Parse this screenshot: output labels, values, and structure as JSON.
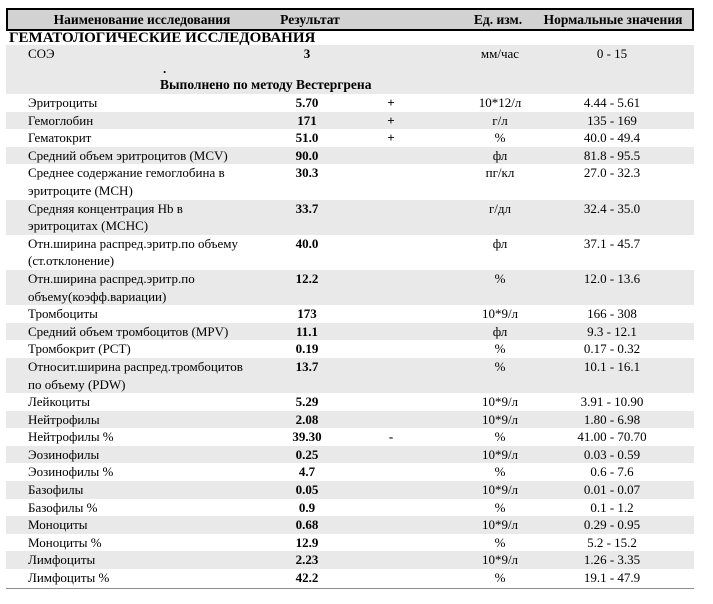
{
  "header": {
    "name": "Наименование исследования",
    "result": "Результат",
    "unit": "Ед. изм.",
    "range": "Нормальные значения"
  },
  "section_title": "ГЕМАТОЛОГИЧЕСКИЕ ИССЛЕДОВАНИЯ",
  "soe": {
    "name": "СОЭ",
    "result": "3",
    "flag": "",
    "unit": "мм/час",
    "range": "0 - 15",
    "dot": ".",
    "method_note": "Выполнено по методу Вестергрена"
  },
  "rows": [
    {
      "name": "Эритроциты",
      "result": "5.70",
      "flag": "+",
      "unit": "10*12/л",
      "range": "4.44 - 5.61",
      "shade": false
    },
    {
      "name": "Гемоглобин",
      "result": "171",
      "flag": "+",
      "unit": "г/л",
      "range": "135 - 169",
      "shade": true
    },
    {
      "name": "Гематокрит",
      "result": "51.0",
      "flag": "+",
      "unit": "%",
      "range": "40.0 - 49.4",
      "shade": false
    },
    {
      "name": "Средний объем эритроцитов (MCV)",
      "result": "90.0",
      "flag": "",
      "unit": "фл",
      "range": "81.8 - 95.5",
      "shade": true
    },
    {
      "name": "Среднее содержание гемоглобина в\nэритроците (MCH)",
      "result": "30.3",
      "flag": "",
      "unit": "пг/кл",
      "range": "27.0 - 32.3",
      "shade": false
    },
    {
      "name": "Средняя концентрация Hb в\nэритроцитах (MCHC)",
      "result": "33.7",
      "flag": "",
      "unit": "г/дл",
      "range": "32.4 - 35.0",
      "shade": true
    },
    {
      "name": "Отн.ширина распред.эритр.по объему\n(ст.отклонение)",
      "result": "40.0",
      "flag": "",
      "unit": "фл",
      "range": "37.1 - 45.7",
      "shade": false
    },
    {
      "name": "Отн.ширина распред.эритр.по\nобъему(коэфф.вариации)",
      "result": "12.2",
      "flag": "",
      "unit": "%",
      "range": "12.0 - 13.6",
      "shade": true
    },
    {
      "name": "Тромбоциты",
      "result": "173",
      "flag": "",
      "unit": "10*9/л",
      "range": "166 - 308",
      "shade": false
    },
    {
      "name": "Средний объем тромбоцитов (MPV)",
      "result": "11.1",
      "flag": "",
      "unit": "фл",
      "range": "9.3 - 12.1",
      "shade": true
    },
    {
      "name": "Тромбокрит (PCT)",
      "result": "0.19",
      "flag": "",
      "unit": "%",
      "range": "0.17 - 0.32",
      "shade": false
    },
    {
      "name": "Относит.ширина распред.тромбоцитов\nпо объему (PDW)",
      "result": "13.7",
      "flag": "",
      "unit": "%",
      "range": "10.1 - 16.1",
      "shade": true
    },
    {
      "name": "Лейкоциты",
      "result": "5.29",
      "flag": "",
      "unit": "10*9/л",
      "range": "3.91 - 10.90",
      "shade": false
    },
    {
      "name": "Нейтрофилы",
      "result": "2.08",
      "flag": "",
      "unit": "10*9/л",
      "range": "1.80 - 6.98",
      "shade": true
    },
    {
      "name": "Нейтрофилы %",
      "result": "39.30",
      "flag": "-",
      "unit": "%",
      "range": "41.00 - 70.70",
      "shade": false
    },
    {
      "name": "Эозинофилы",
      "result": "0.25",
      "flag": "",
      "unit": "10*9/л",
      "range": "0.03 - 0.59",
      "shade": true
    },
    {
      "name": "Эозинофилы %",
      "result": "4.7",
      "flag": "",
      "unit": "%",
      "range": "0.6 - 7.6",
      "shade": false
    },
    {
      "name": "Базофилы",
      "result": "0.05",
      "flag": "",
      "unit": "10*9/л",
      "range": "0.01 - 0.07",
      "shade": true
    },
    {
      "name": "Базофилы %",
      "result": "0.9",
      "flag": "",
      "unit": "%",
      "range": "0.1 - 1.2",
      "shade": false
    },
    {
      "name": "Моноциты",
      "result": "0.68",
      "flag": "",
      "unit": "10*9/л",
      "range": "0.29 - 0.95",
      "shade": true
    },
    {
      "name": "Моноциты %",
      "result": "12.9",
      "flag": "",
      "unit": "%",
      "range": "5.2 - 15.2",
      "shade": false
    },
    {
      "name": "Лимфоциты",
      "result": "2.23",
      "flag": "",
      "unit": "10*9/л",
      "range": "1.26 - 3.35",
      "shade": true
    },
    {
      "name": "Лимфоциты %",
      "result": "42.2",
      "flag": "",
      "unit": "%",
      "range": "19.1 - 47.9",
      "shade": false
    }
  ],
  "colors": {
    "header_bg": "#d2d2d2",
    "row_stripe_bg": "#e9e9e9",
    "header_border": "#000000",
    "bottom_rule": "#8f8f8f"
  }
}
